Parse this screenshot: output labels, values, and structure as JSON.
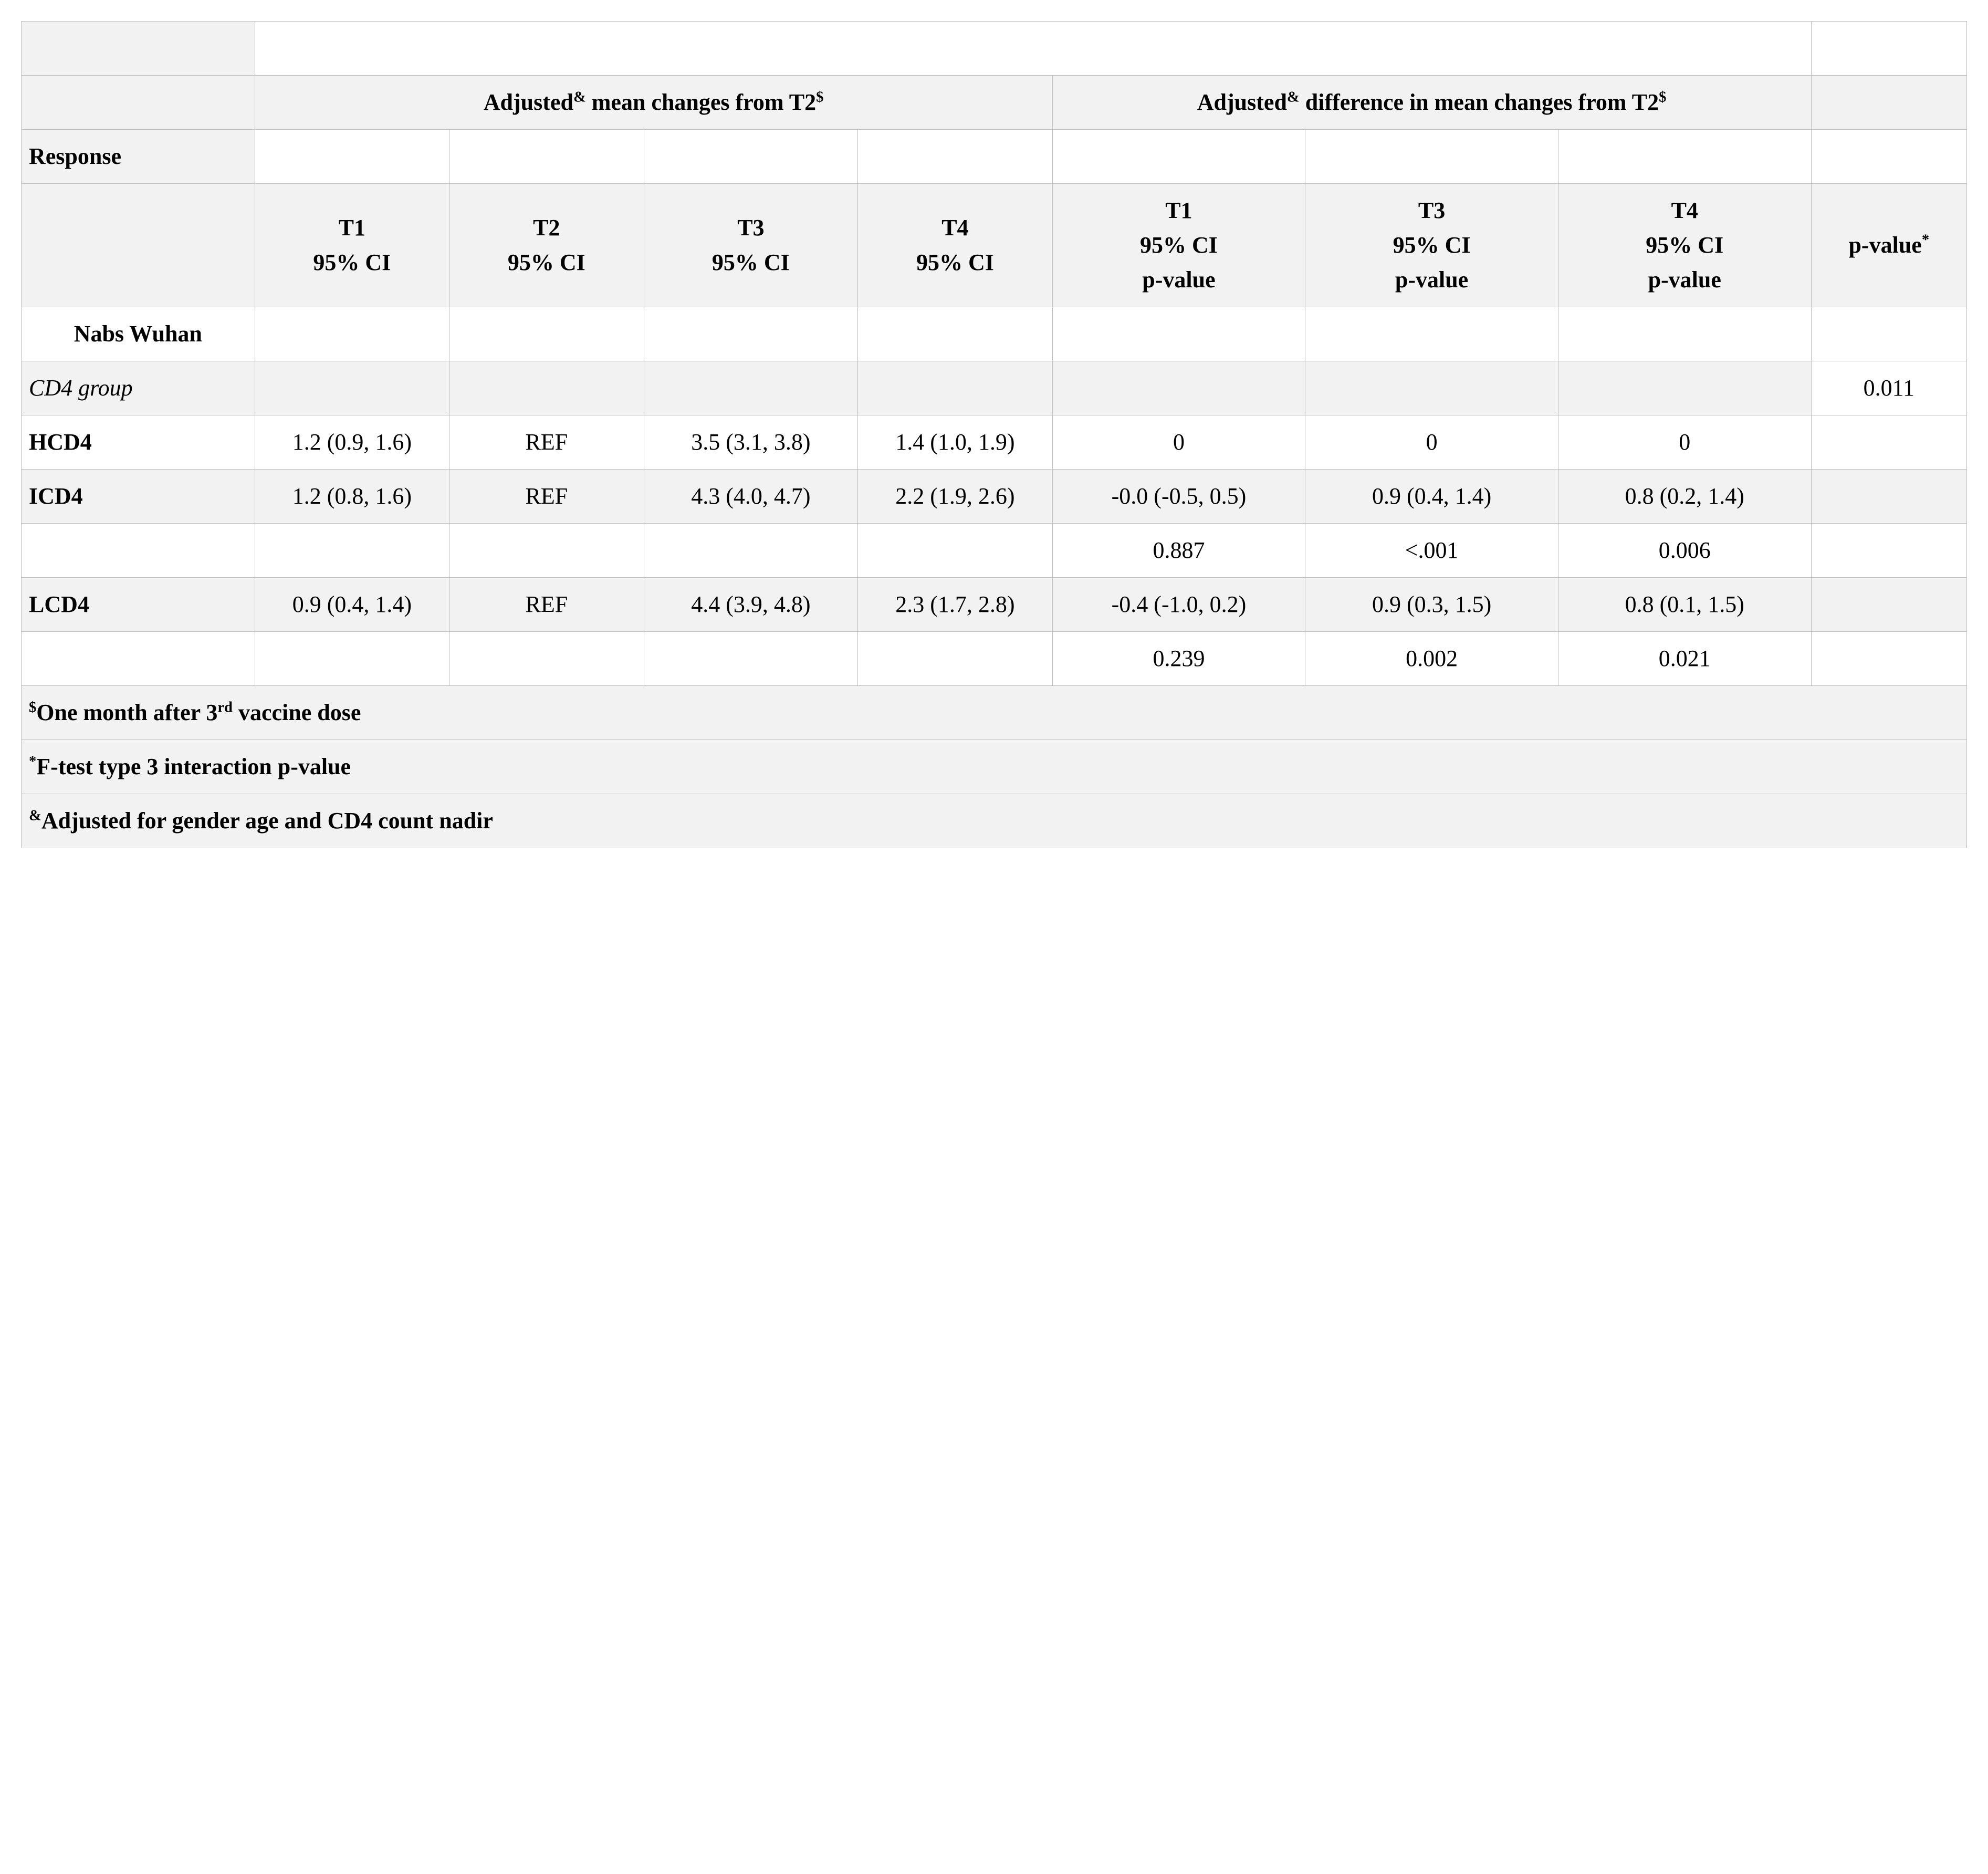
{
  "headers": {
    "group1": "Adjusted<sup>&amp;</sup> mean changes from T2<sup>$</sup>",
    "group2": "Adjusted<sup>&amp;</sup> difference in mean changes from T2<sup>$</sup>",
    "response": "Response",
    "t1": "T1<br>95% CI",
    "t2": "T2<br>95% CI",
    "t3": "T3<br>95% CI",
    "t4": "T4<br>95% CI",
    "d_t1": "T1<br>95% CI<br>p-value",
    "d_t3": "T3<br>95% CI<br>p-value",
    "d_t4": "T4<br>95% CI<br>p-value",
    "pvalue": "p-value<sup>*</sup>"
  },
  "section": {
    "nabs": "Nabs Wuhan",
    "cd4group": "CD4 group",
    "cd4group_p": "0.011"
  },
  "rows": {
    "hcd4": {
      "label": "HCD4",
      "t1": "1.2 (0.9, 1.6)",
      "t2": "REF",
      "t3": "3.5 (3.1, 3.8)",
      "t4": "1.4 (1.0, 1.9)",
      "d_t1": "0",
      "d_t3": "0",
      "d_t4": "0"
    },
    "icd4": {
      "label": "ICD4",
      "t1": "1.2 (0.8, 1.6)",
      "t2": "REF",
      "t3": "4.3 (4.0, 4.7)",
      "t4": "2.2 (1.9, 2.6)",
      "d_t1": "-0.0 (-0.5, 0.5)",
      "d_t3": "0.9 (0.4, 1.4)",
      "d_t4": "0.8 (0.2, 1.4)"
    },
    "icd4_p": {
      "d_t1": "0.887",
      "d_t3": "<.001",
      "d_t4": "0.006"
    },
    "lcd4": {
      "label": "LCD4",
      "t1": "0.9 (0.4, 1.4)",
      "t2": "REF",
      "t3": "4.4 (3.9, 4.8)",
      "t4": "2.3 (1.7, 2.8)",
      "d_t1": "-0.4 (-1.0, 0.2)",
      "d_t3": "0.9 (0.3, 1.5)",
      "d_t4": "0.8 (0.1, 1.5)"
    },
    "lcd4_p": {
      "d_t1": "0.239",
      "d_t3": "0.002",
      "d_t4": "0.021"
    }
  },
  "footnotes": {
    "f1": "<sup>$</sup>One month after 3<sup>rd</sup> vaccine dose",
    "f2": "<sup>*</sup>F-test type 3 interaction p-value",
    "f3": "<sup>&amp;</sup>Adjusted for gender age and CD4 count nadir"
  }
}
